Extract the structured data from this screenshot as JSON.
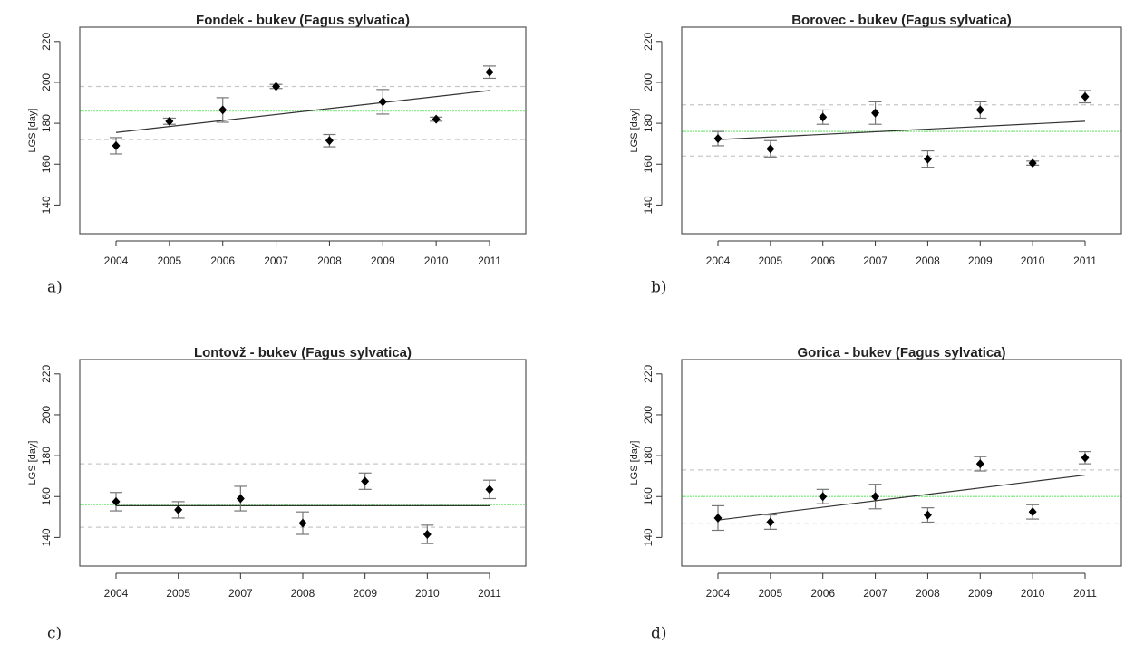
{
  "chart_data": [
    {
      "type": "errorbar",
      "title": "Fondek - bukev (Fagus sylvatica)",
      "panel_label": "a)",
      "y_label": "LGS [day]",
      "categories": [
        "2004",
        "2005",
        "2006",
        "2007",
        "2008",
        "2009",
        "2010",
        "2011"
      ],
      "series": [
        {
          "name": "LGS",
          "color": "#000000",
          "values": [
            169,
            181,
            186.5,
            198,
            171.5,
            190.5,
            182,
            205
          ],
          "errors": [
            4,
            1.5,
            6,
            1,
            3,
            6,
            1,
            3
          ]
        }
      ],
      "mean": 186,
      "mean_color": "#90ee90",
      "bounds": [
        172,
        198
      ],
      "bounds_color": "#c8c8c8",
      "trend": [
        175.5,
        196
      ],
      "trend_color": "#333333",
      "ylim": [
        126,
        227
      ],
      "yticks": [
        140,
        160,
        180,
        200,
        220
      ]
    },
    {
      "type": "errorbar",
      "title": "Borovec - bukev (Fagus sylvatica)",
      "panel_label": "b)",
      "y_label": "LGS [day]",
      "categories": [
        "2004",
        "2005",
        "2006",
        "2007",
        "2008",
        "2009",
        "2010",
        "2011"
      ],
      "series": [
        {
          "name": "LGS",
          "color": "#000000",
          "values": [
            172.5,
            167.5,
            183,
            185,
            162.5,
            186.5,
            160.5,
            193
          ],
          "errors": [
            3.5,
            4,
            3.5,
            5.5,
            4,
            4,
            1,
            3
          ]
        }
      ],
      "mean": 176,
      "mean_color": "#90ee90",
      "bounds": [
        164,
        189
      ],
      "bounds_color": "#c8c8c8",
      "trend": [
        172,
        181
      ],
      "trend_color": "#333333",
      "ylim": [
        126,
        227
      ],
      "yticks": [
        140,
        160,
        180,
        200,
        220
      ]
    },
    {
      "type": "errorbar",
      "title": "Lontovž - bukev (Fagus sylvatica)",
      "panel_label": "c)",
      "y_label": "LGS [day]",
      "categories": [
        "2004",
        "2005",
        "2007",
        "2008",
        "2009",
        "2010",
        "2011"
      ],
      "series": [
        {
          "name": "LGS",
          "color": "#000000",
          "values": [
            157.5,
            153.5,
            159,
            147,
            167.5,
            141.5,
            163.5
          ],
          "errors": [
            4.5,
            4,
            6,
            5.5,
            4,
            4.5,
            4.5
          ]
        }
      ],
      "mean": 156,
      "mean_color": "#90ee90",
      "bounds": [
        145,
        176
      ],
      "bounds_color": "#c8c8c8",
      "trend": [
        155.5,
        155.5
      ],
      "trend_color": "#333333",
      "ylim": [
        126,
        227
      ],
      "yticks": [
        140,
        160,
        180,
        200,
        220
      ]
    },
    {
      "type": "errorbar",
      "title": "Gorica - bukev (Fagus sylvatica)",
      "panel_label": "d)",
      "y_label": "LGS [day]",
      "categories": [
        "2004",
        "2005",
        "2006",
        "2007",
        "2008",
        "2009",
        "2010",
        "2011"
      ],
      "series": [
        {
          "name": "LGS",
          "color": "#000000",
          "values": [
            149.5,
            147.5,
            160,
            160,
            151,
            176,
            152.5,
            179
          ],
          "errors": [
            6,
            3.5,
            3.5,
            6,
            3.5,
            3.5,
            3.5,
            3
          ]
        }
      ],
      "mean": 160,
      "mean_color": "#90ee90",
      "bounds": [
        147,
        173
      ],
      "bounds_color": "#c8c8c8",
      "trend": [
        148.5,
        170.5
      ],
      "trend_color": "#333333",
      "ylim": [
        126,
        227
      ],
      "yticks": [
        140,
        160,
        180,
        200,
        220
      ]
    }
  ]
}
